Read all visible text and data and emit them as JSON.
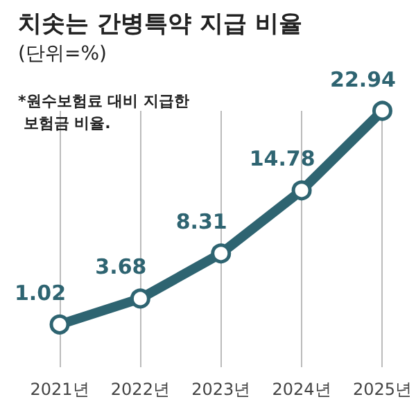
{
  "chart_data": {
    "type": "line",
    "title": "치솟는 간병특약 지급 비율",
    "subtitle": "(단위=%)",
    "annotations": [
      "*원수보험료 대비 지급한\n 보험금 비율."
    ],
    "categories": [
      "2021년",
      "2022년",
      "2023년",
      "2024년",
      "2025년"
    ],
    "series": [
      {
        "color": "#2e6471",
        "values": [
          1.02,
          3.68,
          8.31,
          14.78,
          22.94
        ]
      }
    ],
    "data_labels": true,
    "marker": "circle",
    "line_style": "solid",
    "grid": "x"
  }
}
